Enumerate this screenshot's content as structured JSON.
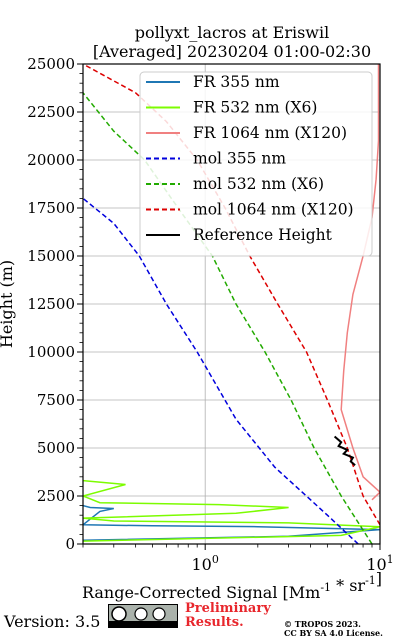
{
  "chart_data": {
    "type": "line",
    "title_line1": "pollyxt_lacros at Eriswil",
    "title_line2": "[Averaged] 20230204 01:00-02:30",
    "xlabel": "Range-Corrected Signal [Mm^-1 * sr^-1]",
    "ylabel": "Height (m)",
    "xscale": "log",
    "xlim": [
      0.2,
      10
    ],
    "ylim": [
      0,
      25000
    ],
    "y_ticks": [
      0,
      2500,
      5000,
      7500,
      10000,
      12500,
      15000,
      17500,
      20000,
      22500,
      25000
    ],
    "y_tick_labels": [
      "0",
      "2500",
      "5000",
      "7500",
      "10000",
      "12500",
      "15000",
      "17500",
      "20000",
      "22500",
      "25000"
    ],
    "x_tick_labels": [
      "10^0",
      "10^1"
    ],
    "grid": true,
    "legend_position": "top-right",
    "series": [
      {
        "name": "FR 355 nm",
        "color": "#1f77b4",
        "style": "solid",
        "points": [
          [
            0.2,
            200
          ],
          [
            3,
            400
          ],
          [
            10,
            750
          ],
          [
            2,
            900
          ],
          [
            0.5,
            950
          ],
          [
            0.2,
            1000
          ],
          [
            0.25,
            1700
          ],
          [
            0.3,
            1850
          ],
          [
            0.22,
            1900
          ],
          [
            0.2,
            2000
          ]
        ]
      },
      {
        "name": "FR 532 nm (X6)",
        "color": "#7cfc00",
        "style": "solid",
        "points": [
          [
            0.2,
            150
          ],
          [
            6,
            450
          ],
          [
            10,
            900
          ],
          [
            3,
            1100
          ],
          [
            0.3,
            1200
          ],
          [
            0.2,
            1350
          ],
          [
            1.5,
            1600
          ],
          [
            3,
            1900
          ],
          [
            1.2,
            2050
          ],
          [
            0.25,
            2150
          ],
          [
            0.2,
            2500
          ],
          [
            0.35,
            3100
          ],
          [
            0.2,
            3300
          ]
        ]
      },
      {
        "name": "FR 1064 nm (X120)",
        "color": "#f08080",
        "style": "solid",
        "points": [
          [
            9,
            2300
          ],
          [
            10,
            2700
          ],
          [
            8,
            3500
          ],
          [
            7,
            5000
          ],
          [
            6,
            7000
          ],
          [
            6.2,
            9000
          ],
          [
            6.5,
            11000
          ],
          [
            7,
            13000
          ],
          [
            8,
            15000
          ],
          [
            9,
            17000
          ],
          [
            9.5,
            19000
          ],
          [
            9.8,
            21000
          ],
          [
            9.8,
            23000
          ],
          [
            9.8,
            25000
          ]
        ]
      },
      {
        "name": "mol 355 nm",
        "color": "#0000dd",
        "style": "dashed",
        "points": [
          [
            7.5,
            0
          ],
          [
            5,
            1500
          ],
          [
            2.5,
            4000
          ],
          [
            1.5,
            6500
          ],
          [
            0.9,
            10000
          ],
          [
            0.6,
            12500
          ],
          [
            0.42,
            15000
          ],
          [
            0.3,
            16700
          ],
          [
            0.2,
            18000
          ]
        ]
      },
      {
        "name": "mol 532 nm (X6)",
        "color": "#22aa00",
        "style": "dashed",
        "points": [
          [
            9,
            0
          ],
          [
            6,
            2500
          ],
          [
            4.2,
            5000
          ],
          [
            3.1,
            7500
          ],
          [
            2.2,
            10000
          ],
          [
            1.5,
            12500
          ],
          [
            1.1,
            15000
          ],
          [
            0.7,
            17500
          ],
          [
            0.45,
            20000
          ],
          [
            0.3,
            21500
          ],
          [
            0.2,
            23500
          ]
        ]
      },
      {
        "name": "mol 1064 nm (X120)",
        "color": "#dd0000",
        "style": "dashed",
        "points": [
          [
            10,
            1000
          ],
          [
            8,
            2500
          ],
          [
            6.5,
            5000
          ],
          [
            5,
            7500
          ],
          [
            3.8,
            10000
          ],
          [
            2.6,
            12500
          ],
          [
            1.8,
            15000
          ],
          [
            1.3,
            17500
          ],
          [
            0.9,
            20000
          ],
          [
            0.6,
            22000
          ],
          [
            0.4,
            23500
          ],
          [
            0.2,
            25000
          ]
        ]
      },
      {
        "name": "Reference Height",
        "color": "#000000",
        "style": "solid",
        "points": [
          [
            5.5,
            5600
          ],
          [
            6,
            5300
          ],
          [
            5.8,
            5100
          ],
          [
            6.5,
            4900
          ],
          [
            6.2,
            4700
          ],
          [
            7,
            4500
          ],
          [
            6.8,
            4300
          ],
          [
            7.2,
            4100
          ]
        ]
      }
    ]
  },
  "footer": {
    "version": "Version: 3.5",
    "preliminary_line1": "Preliminary",
    "preliminary_line2": "Results.",
    "copyright_line1": "© TROPOS 2023.",
    "copyright_line2": "CC BY SA 4.0 License.",
    "cc_badge_text": "BY SA"
  }
}
